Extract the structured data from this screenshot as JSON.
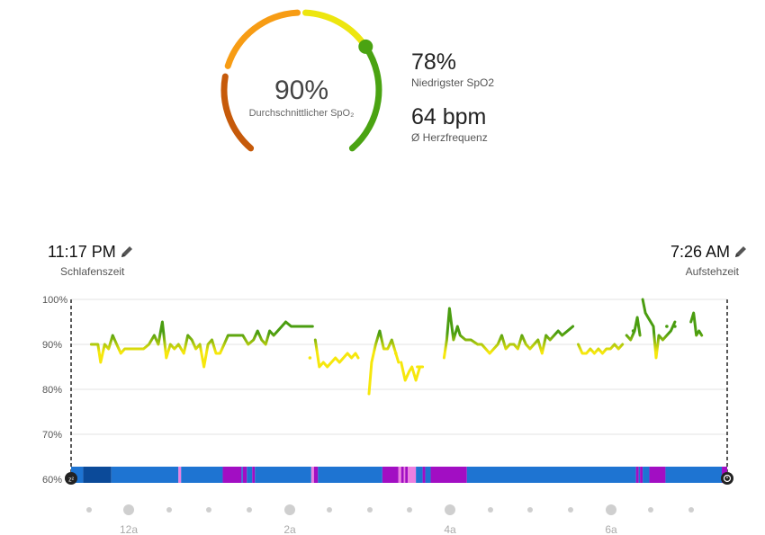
{
  "summary": {
    "avg_value": "90%",
    "avg_label": "Durchschnittlicher SpO₂",
    "avg_fraction": 0.9,
    "lowest_value": "78%",
    "lowest_label": "Niedrigster SpO2",
    "hr_value": "64 bpm",
    "hr_label": "Ø Herzfrequenz"
  },
  "bedtime": {
    "time": "11:17 PM",
    "label": "Schlafenszeit"
  },
  "waketime": {
    "time": "7:26 AM",
    "label": "Aufstehzeit"
  },
  "colors": {
    "gauge_low": "#c65a0a",
    "gauge_mid": "#f79c14",
    "gauge_high": "#ede60f",
    "gauge_top": "#4aa312",
    "line_high": "#4a9d10",
    "line_low": "#f6e70c",
    "line_lowest": "#f59a16",
    "stage_light": "#1e74d2",
    "stage_deep": "#0b4a99",
    "stage_rem": "#a20ec3",
    "stage_awake": "#ec7fe0"
  },
  "chart_data": {
    "type": "line",
    "title": "",
    "xlabel": "",
    "ylabel": "",
    "ylim": [
      60,
      100
    ],
    "yticks": [
      "60%",
      "70%",
      "80%",
      "90%",
      "100%"
    ],
    "hour_labels": [
      "12a",
      "2a",
      "4a",
      "6a"
    ],
    "x_unit": "minutes after 11:17 PM",
    "x_range": [
      0,
      489
    ],
    "series": [
      {
        "segments": [
          [
            [
              15,
              90
            ],
            [
              20,
              90
            ],
            [
              22,
              86
            ],
            [
              25,
              90
            ],
            [
              28,
              89
            ],
            [
              31,
              92
            ],
            [
              34,
              90
            ],
            [
              37,
              88
            ],
            [
              40,
              89
            ],
            [
              45,
              89
            ],
            [
              50,
              89
            ],
            [
              54,
              89
            ],
            [
              58,
              90
            ],
            [
              62,
              92
            ],
            [
              65,
              90
            ],
            [
              68,
              95
            ],
            [
              71,
              87
            ],
            [
              74,
              90
            ],
            [
              77,
              89
            ],
            [
              80,
              90
            ],
            [
              84,
              88
            ],
            [
              87,
              92
            ],
            [
              90,
              91
            ],
            [
              93,
              89
            ],
            [
              96,
              90
            ],
            [
              99,
              85
            ],
            [
              102,
              90
            ],
            [
              105,
              91
            ],
            [
              108,
              88
            ],
            [
              111,
              88
            ],
            [
              114,
              90
            ],
            [
              117,
              92
            ],
            [
              120,
              92
            ],
            [
              124,
              92
            ],
            [
              128,
              92
            ],
            [
              132,
              90
            ],
            [
              136,
              91
            ],
            [
              139,
              93
            ],
            [
              142,
              91
            ],
            [
              145,
              90
            ],
            [
              148,
              93
            ],
            [
              151,
              92
            ],
            [
              154,
              93
            ],
            [
              157,
              94
            ],
            [
              160,
              95
            ],
            [
              164,
              94
            ],
            [
              168,
              94
            ],
            [
              172,
              94
            ],
            [
              176,
              94
            ],
            [
              180,
              94
            ]
          ],
          [
            [
              182,
              91
            ],
            [
              185,
              85
            ],
            [
              188,
              86
            ],
            [
              191,
              85
            ],
            [
              194,
              86
            ],
            [
              197,
              87
            ],
            [
              200,
              86
            ],
            [
              203,
              87
            ],
            [
              206,
              88
            ],
            [
              209,
              87
            ],
            [
              212,
              88
            ],
            [
              214,
              87
            ]
          ],
          [
            [
              222,
              79
            ],
            [
              224,
              86
            ],
            [
              227,
              90
            ],
            [
              230,
              93
            ],
            [
              233,
              89
            ],
            [
              236,
              89
            ],
            [
              239,
              91
            ],
            [
              242,
              88
            ],
            [
              244,
              86
            ]
          ],
          [
            [
              246,
              86
            ],
            [
              249,
              82
            ],
            [
              252,
              84
            ],
            [
              254,
              85
            ],
            [
              257,
              82
            ],
            [
              260,
              85
            ]
          ],
          [
            [
              258,
              85
            ],
            [
              262,
              85
            ]
          ],
          [
            [
              278,
              87
            ],
            [
              280,
              91
            ],
            [
              282,
              98
            ],
            [
              285,
              91
            ],
            [
              288,
              94
            ],
            [
              290,
              92
            ],
            [
              294,
              91
            ],
            [
              298,
              91
            ],
            [
              303,
              90
            ],
            [
              306,
              90
            ],
            [
              309,
              89
            ],
            [
              312,
              88
            ],
            [
              315,
              89
            ],
            [
              318,
              90
            ],
            [
              321,
              92
            ],
            [
              324,
              89
            ],
            [
              327,
              90
            ],
            [
              330,
              90
            ],
            [
              333,
              89
            ],
            [
              336,
              92
            ],
            [
              339,
              90
            ],
            [
              342,
              89
            ],
            [
              345,
              90
            ],
            [
              348,
              91
            ],
            [
              351,
              88
            ],
            [
              354,
              92
            ],
            [
              357,
              91
            ],
            [
              360,
              92
            ],
            [
              363,
              93
            ],
            [
              366,
              92
            ],
            [
              370,
              93
            ],
            [
              374,
              94
            ]
          ],
          [
            [
              378,
              90
            ],
            [
              381,
              88
            ],
            [
              384,
              88
            ],
            [
              387,
              89
            ],
            [
              390,
              88
            ],
            [
              393,
              89
            ],
            [
              396,
              88
            ],
            [
              399,
              89
            ],
            [
              402,
              89
            ],
            [
              405,
              90
            ],
            [
              408,
              89
            ],
            [
              411,
              90
            ]
          ],
          [
            [
              414,
              92
            ],
            [
              417,
              91
            ],
            [
              420,
              93
            ],
            [
              422,
              96
            ],
            [
              424,
              92
            ]
          ],
          [
            [
              426,
              100
            ],
            [
              428,
              97
            ],
            [
              430,
              96
            ],
            [
              432,
              95
            ],
            [
              434,
              94
            ],
            [
              436,
              87
            ],
            [
              438,
              92
            ],
            [
              441,
              91
            ],
            [
              444,
              92
            ],
            [
              447,
              93
            ],
            [
              450,
              95
            ]
          ],
          [
            [
              462,
              95
            ],
            [
              464,
              97
            ],
            [
              466,
              92
            ],
            [
              468,
              93
            ],
            [
              470,
              92
            ]
          ]
        ],
        "dots": [
          [
            178,
            87
          ],
          [
            242,
            88
          ],
          [
            419,
            93
          ],
          [
            444,
            94
          ],
          [
            450,
            94
          ]
        ]
      }
    ],
    "sleep_stages": [
      {
        "stage": "light",
        "start": 0,
        "end": 9
      },
      {
        "stage": "deep",
        "start": 9,
        "end": 30
      },
      {
        "stage": "light",
        "start": 30,
        "end": 80
      },
      {
        "stage": "awake",
        "start": 80,
        "end": 82
      },
      {
        "stage": "light",
        "start": 82,
        "end": 113
      },
      {
        "stage": "rem",
        "start": 113,
        "end": 127
      },
      {
        "stage": "light",
        "start": 127,
        "end": 128
      },
      {
        "stage": "rem",
        "start": 128,
        "end": 131
      },
      {
        "stage": "light",
        "start": 131,
        "end": 135
      },
      {
        "stage": "rem",
        "start": 135,
        "end": 137
      },
      {
        "stage": "light",
        "start": 137,
        "end": 179
      },
      {
        "stage": "awake",
        "start": 179,
        "end": 181
      },
      {
        "stage": "rem",
        "start": 181,
        "end": 184
      },
      {
        "stage": "light",
        "start": 184,
        "end": 232
      },
      {
        "stage": "rem",
        "start": 232,
        "end": 244
      },
      {
        "stage": "awake",
        "start": 244,
        "end": 246
      },
      {
        "stage": "rem",
        "start": 246,
        "end": 248
      },
      {
        "stage": "awake",
        "start": 248,
        "end": 249
      },
      {
        "stage": "rem",
        "start": 249,
        "end": 251
      },
      {
        "stage": "awake",
        "start": 251,
        "end": 257
      },
      {
        "stage": "light",
        "start": 257,
        "end": 262
      },
      {
        "stage": "rem",
        "start": 262,
        "end": 264
      },
      {
        "stage": "light",
        "start": 264,
        "end": 268
      },
      {
        "stage": "rem",
        "start": 268,
        "end": 295
      },
      {
        "stage": "light",
        "start": 295,
        "end": 421
      },
      {
        "stage": "rem",
        "start": 421,
        "end": 423
      },
      {
        "stage": "light",
        "start": 423,
        "end": 424
      },
      {
        "stage": "rem",
        "start": 424,
        "end": 426
      },
      {
        "stage": "light",
        "start": 426,
        "end": 431
      },
      {
        "stage": "rem",
        "start": 431,
        "end": 443
      },
      {
        "stage": "light",
        "start": 443,
        "end": 485
      },
      {
        "stage": "rem",
        "start": 485,
        "end": 489
      }
    ]
  }
}
